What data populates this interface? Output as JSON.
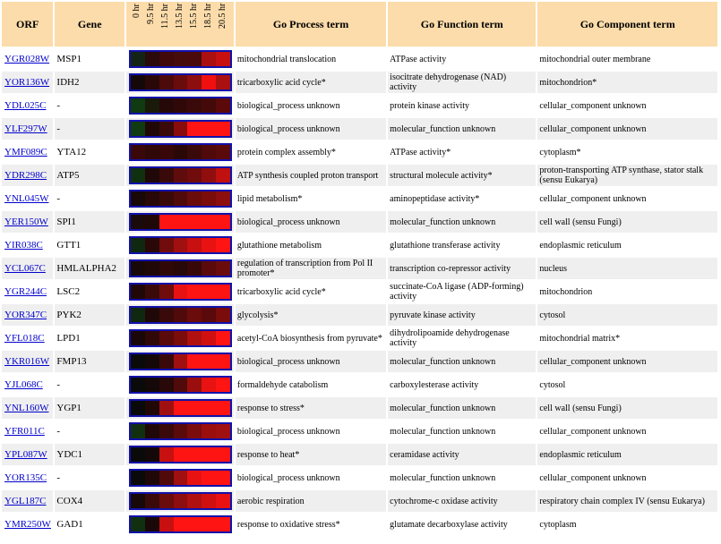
{
  "headers": {
    "orf": "ORF",
    "gene": "Gene",
    "process": "Go Process term",
    "function": "Go Function term",
    "component": "Go Component term"
  },
  "hours": [
    "0 hr",
    "9.5 hr",
    "11.5 hr",
    "13.5 hr",
    "15.5 hr",
    "18.5 hr",
    "20.5 hr"
  ],
  "rows": [
    {
      "orf": "YGR028W",
      "gene": "MSP1",
      "process": "mitochondrial translocation",
      "function": "ATPase activity",
      "component": "mitochondrial outer membrane",
      "heat": [
        "#142414",
        "#2a0a0a",
        "#400a0a",
        "#460c0c",
        "#4a0a0a",
        "#aa1010",
        "#c81010"
      ]
    },
    {
      "orf": "YOR136W",
      "gene": "IDH2",
      "process": "tricarboxylic acid cycle*",
      "function": "isocitrate dehydrogenase (NAD) activity",
      "component": "mitochondrion*",
      "heat": [
        "#140808",
        "#2a0808",
        "#4c0a0a",
        "#6a0c0c",
        "#8c0e0e",
        "#f01010",
        "#aa1010"
      ]
    },
    {
      "orf": "YDL025C",
      "gene": "-",
      "process": "biological_process unknown",
      "function": "protein kinase activity",
      "component": "cellular_component unknown",
      "heat": [
        "#103a10",
        "#1a1a0a",
        "#260808",
        "#300808",
        "#3a0a0a",
        "#440a0a",
        "#5a0a0a"
      ]
    },
    {
      "orf": "YLF297W",
      "gene": "-",
      "process": "biological_process unknown",
      "function": "molecular_function unknown",
      "component": "cellular_component unknown",
      "heat": [
        "#103a10",
        "#200808",
        "#3a0a0a",
        "#880c0c",
        "#ff1414",
        "#ff1414",
        "#ff1414"
      ]
    },
    {
      "orf": "YMF089C",
      "gene": "YTA12",
      "process": "protein complex assembly*",
      "function": "ATPase activity*",
      "component": "cytoplasm*",
      "heat": [
        "#3a0808",
        "#300808",
        "#380808",
        "#2a0808",
        "#3a0a0a",
        "#500a0a",
        "#5a0a0a"
      ]
    },
    {
      "orf": "YDR298C",
      "gene": "ATP5",
      "process": "ATP synthesis coupled proton transport",
      "function": "structural molecule activity*",
      "component": "proton-transporting ATP synthase, stator stalk (sensu Eukarya)",
      "heat": [
        "#103010",
        "#200808",
        "#3a0a0a",
        "#600c0c",
        "#700c0c",
        "#900e0e",
        "#c01010"
      ]
    },
    {
      "orf": "YNL045W",
      "gene": "-",
      "process": "lipid metabolism*",
      "function": "aminopeptidase activity*",
      "component": "cellular_component unknown",
      "heat": [
        "#180808",
        "#280808",
        "#3a0a0a",
        "#500a0a",
        "#6a0c0c",
        "#7a0c0c",
        "#8c0e0e"
      ]
    },
    {
      "orf": "YER150W",
      "gene": "SPI1",
      "process": "biological_process unknown",
      "function": "molecular_function unknown",
      "component": "cell wall (sensu Fungi)",
      "heat": [
        "#1a0a0a",
        "#1e0808",
        "#ff1414",
        "#ff1414",
        "#ff1414",
        "#ff1414",
        "#ff1414"
      ]
    },
    {
      "orf": "YIR038C",
      "gene": "GTT1",
      "process": "glutathione metabolism",
      "function": "glutathione transferase activity",
      "component": "endoplasmic reticulum",
      "heat": [
        "#102810",
        "#2a0808",
        "#700c0c",
        "#a01010",
        "#c81010",
        "#e81212",
        "#ff1414"
      ]
    },
    {
      "orf": "YCL067C",
      "gene": "HMLALPHA2",
      "process": "regulation of transcription from Pol II promoter*",
      "function": "transcription co-repressor activity",
      "component": "nucleus",
      "heat": [
        "#180808",
        "#200808",
        "#300808",
        "#280808",
        "#380808",
        "#5a0a0a",
        "#6a0c0c"
      ]
    },
    {
      "orf": "YGR244C",
      "gene": "LSC2",
      "process": "tricarboxylic acid cycle*",
      "function": "succinate-CoA ligase (ADP-forming) activity",
      "component": "mitochondrion",
      "heat": [
        "#200808",
        "#3a0a0a",
        "#700c0c",
        "#e81212",
        "#ff1414",
        "#ff1414",
        "#ff1414"
      ]
    },
    {
      "orf": "YOR347C",
      "gene": "PYK2",
      "process": "glycolysis*",
      "function": "pyruvate kinase activity",
      "component": "cytosol",
      "heat": [
        "#102810",
        "#200808",
        "#3a0a0a",
        "#500a0a",
        "#6a0c0c",
        "#5a0a0a",
        "#7a0c0c"
      ]
    },
    {
      "orf": "YFL018C",
      "gene": "LPD1",
      "process": "acetyl-CoA biosynthesis from pyruvate*",
      "function": "dihydrolipoamide dehydrogenase activity",
      "component": "mitochondrial matrix*",
      "heat": [
        "#1a0808",
        "#300808",
        "#5a0a0a",
        "#7a0c0c",
        "#b01010",
        "#d01010",
        "#ff1414"
      ]
    },
    {
      "orf": "YKR016W",
      "gene": "FMP13",
      "process": "biological_process unknown",
      "function": "molecular_function unknown",
      "component": "cellular_component unknown",
      "heat": [
        "#0a0a0a",
        "#140808",
        "#3a0a0a",
        "#a01010",
        "#ff1414",
        "#ff1414",
        "#ff1414"
      ]
    },
    {
      "orf": "YJL068C",
      "gene": "-",
      "process": "formaldehyde catabolism",
      "function": "carboxylesterase activity",
      "component": "cytosol",
      "heat": [
        "#0a0a0a",
        "#140808",
        "#280808",
        "#500a0a",
        "#9a0e0e",
        "#e81212",
        "#ff1414"
      ]
    },
    {
      "orf": "YNL160W",
      "gene": "YGP1",
      "process": "response to stress*",
      "function": "molecular_function unknown",
      "component": "cell wall (sensu Fungi)",
      "heat": [
        "#0a0a0a",
        "#200808",
        "#a01010",
        "#ff1414",
        "#ff1414",
        "#ff1414",
        "#ff1414"
      ]
    },
    {
      "orf": "YFR011C",
      "gene": "-",
      "process": "biological_process unknown",
      "function": "molecular_function unknown",
      "component": "cellular_component unknown",
      "heat": [
        "#103010",
        "#200808",
        "#3a0a0a",
        "#5a0a0a",
        "#7a0c0c",
        "#9a0e0e",
        "#a01010"
      ]
    },
    {
      "orf": "YPL087W",
      "gene": "YDC1",
      "process": "response to heat*",
      "function": "ceramidase activity",
      "component": "endoplasmic reticulum",
      "heat": [
        "#0a0a0a",
        "#140808",
        "#c81010",
        "#ff1414",
        "#ff1414",
        "#ff1414",
        "#ff1414"
      ]
    },
    {
      "orf": "YOR135C",
      "gene": "-",
      "process": "biological_process unknown",
      "function": "molecular_function unknown",
      "component": "cellular_component unknown",
      "heat": [
        "#0a0a0a",
        "#200808",
        "#500a0a",
        "#a01010",
        "#e81212",
        "#ff1414",
        "#ff1414"
      ]
    },
    {
      "orf": "YGL187C",
      "gene": "COX4",
      "process": "aerobic respiration",
      "function": "cytochrome-c oxidase activity",
      "component": "respiratory chain complex IV (sensu Eukarya)",
      "heat": [
        "#180808",
        "#3a0a0a",
        "#6a0c0c",
        "#8c0e0e",
        "#b01010",
        "#d01010",
        "#e81212"
      ]
    },
    {
      "orf": "YMR250W",
      "gene": "GAD1",
      "process": "response to oxidative stress*",
      "function": "glutamate decarboxylase activity",
      "component": "cytoplasm",
      "heat": [
        "#103010",
        "#1a0808",
        "#c81010",
        "#ff1414",
        "#ff1414",
        "#ff1414",
        "#ff1414"
      ]
    }
  ]
}
